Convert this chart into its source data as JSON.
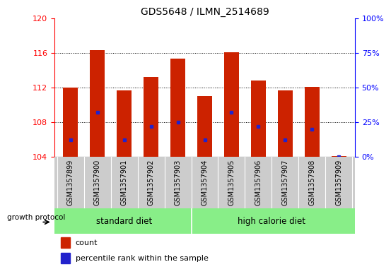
{
  "title": "GDS5648 / ILMN_2514689",
  "samples": [
    "GSM1357899",
    "GSM1357900",
    "GSM1357901",
    "GSM1357902",
    "GSM1357903",
    "GSM1357904",
    "GSM1357905",
    "GSM1357906",
    "GSM1357907",
    "GSM1357908",
    "GSM1357909"
  ],
  "bar_tops": [
    112.0,
    116.3,
    111.7,
    113.2,
    115.3,
    111.0,
    116.1,
    112.8,
    111.7,
    112.1,
    104.05
  ],
  "bar_base": 104.0,
  "percentile_values": [
    12.0,
    32.0,
    12.0,
    22.0,
    25.0,
    12.0,
    32.0,
    22.0,
    12.0,
    20.0,
    0.0
  ],
  "ylim_left": [
    104,
    120
  ],
  "ylim_right": [
    0,
    100
  ],
  "yticks_left": [
    104,
    108,
    112,
    116,
    120
  ],
  "yticks_right": [
    0,
    25,
    50,
    75,
    100
  ],
  "bar_color": "#cc2200",
  "dot_color": "#2222cc",
  "background_color": "#ffffff",
  "group_labels": [
    "standard diet",
    "high calorie diet"
  ],
  "group_color": "#88ee88",
  "xlabel_area_color": "#cccccc",
  "protocol_label": "growth protocol",
  "grid_lines": [
    108,
    112,
    116
  ]
}
